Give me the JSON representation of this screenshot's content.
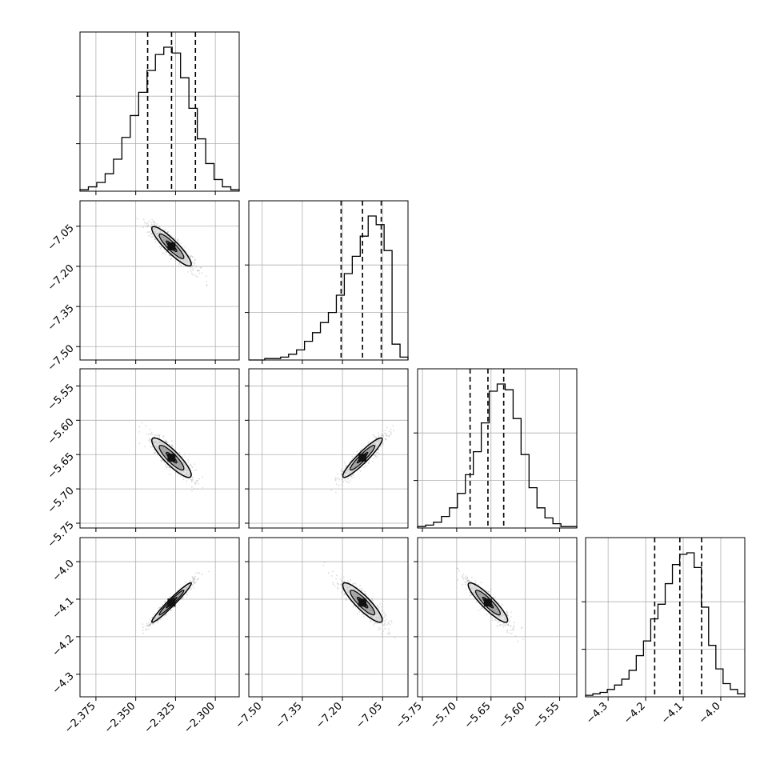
{
  "chart_data": {
    "type": "corner",
    "n_params": 4,
    "quantile_levels": [
      0.16,
      0.5,
      0.84
    ],
    "contour_fill": "#808080",
    "sample_color": "#9a9a9a",
    "parameters": [
      {
        "range": [
          -2.385,
          -2.285
        ],
        "ticks": [
          -2.375,
          -2.35,
          -2.325,
          -2.3
        ],
        "tick_labels": [
          "−2.375",
          "−2.350",
          "−2.325",
          "−2.300"
        ],
        "quantiles": [
          -2.3425,
          -2.3275,
          -2.3125
        ],
        "hist_counts": [
          1,
          3,
          6,
          12,
          22,
          37,
          52,
          68,
          83,
          94,
          99,
          95,
          78,
          57,
          36,
          19,
          8,
          3,
          1
        ]
      },
      {
        "range": [
          -7.55,
          -6.955
        ],
        "ticks": [
          -7.5,
          -7.35,
          -7.2,
          -7.05
        ],
        "tick_labels": [
          "−7.50",
          "−7.35",
          "−7.20",
          "−7.05"
        ],
        "quantiles": [
          -7.205,
          -7.125,
          -7.055
        ],
        "hist_counts": [
          0,
          0,
          1,
          1,
          2,
          4,
          7,
          13,
          19,
          26,
          33,
          45,
          60,
          72,
          86,
          100,
          94,
          76,
          11,
          2
        ]
      },
      {
        "range": [
          -5.757,
          -5.525
        ],
        "ticks": [
          -5.75,
          -5.7,
          -5.65,
          -5.6,
          -5.55
        ],
        "tick_labels": [
          "−5.75",
          "−5.70",
          "−5.65",
          "−5.60",
          "−5.55"
        ],
        "quantiles": [
          -5.6805,
          -5.6545,
          -5.6315
        ],
        "hist_counts": [
          1,
          2,
          4,
          8,
          14,
          24,
          37,
          53,
          73,
          95,
          100,
          96,
          76,
          51,
          28,
          14,
          7,
          3,
          1,
          1
        ]
      },
      {
        "range": [
          -4.36,
          -3.936
        ],
        "ticks": [
          -4.3,
          -4.2,
          -4.1,
          -4.0
        ],
        "tick_labels": [
          "−4.3",
          "−4.2",
          "−4.1",
          "−4.0"
        ],
        "quantiles": [
          -4.176,
          -4.109,
          -4.051
        ],
        "hist_counts": [
          1,
          2,
          3,
          5,
          8,
          12,
          18,
          28,
          38,
          53,
          63,
          77,
          90,
          97,
          98,
          88,
          61,
          35,
          19,
          9,
          5,
          2
        ]
      }
    ],
    "pair_correlations": {
      "1-0": -0.9,
      "2-0": -0.87,
      "2-1": 0.93,
      "3-0": 0.97,
      "3-1": -0.88,
      "3-2": -0.9
    }
  }
}
